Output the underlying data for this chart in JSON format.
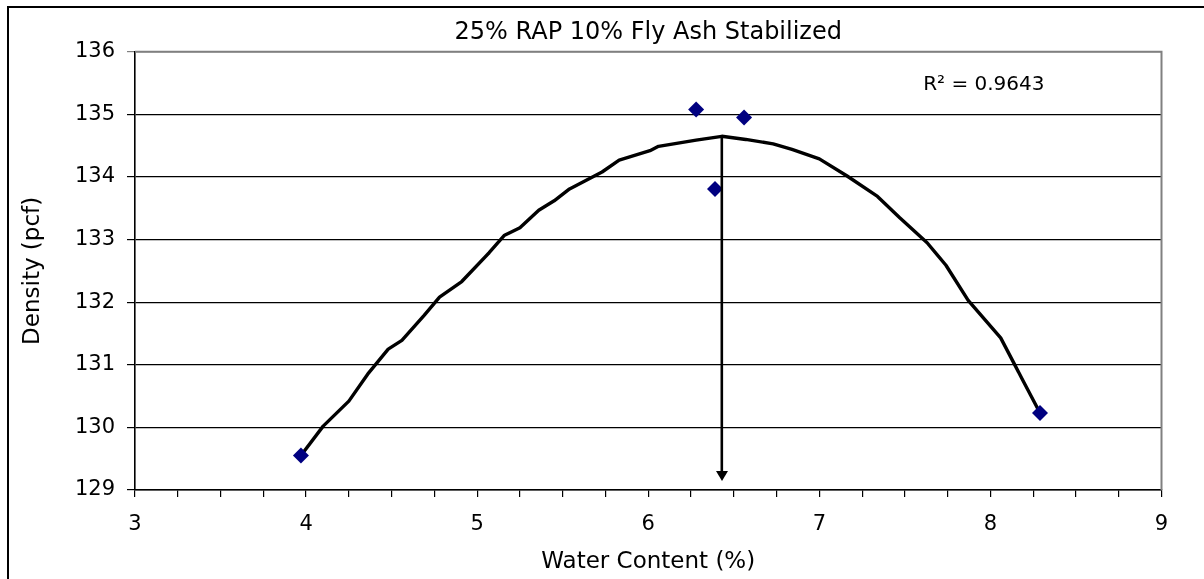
{
  "chart_data": {
    "type": "scatter",
    "title": "25% RAP 10% Fly Ash Stabilized",
    "xlabel": "Water Content (%)",
    "ylabel": "Density (pcf)",
    "annotations": [
      "R² = 0.9643"
    ],
    "xlim": [
      3,
      9
    ],
    "xticks": [
      3,
      {
        "value": 3.25,
        "label": null
      },
      {
        "value": 3.5,
        "label": null
      },
      {
        "value": 3.75,
        "label": null
      },
      4,
      {
        "value": 4.25,
        "label": null
      },
      {
        "value": 4.5,
        "label": null
      },
      {
        "value": 4.75,
        "label": null
      },
      5,
      {
        "value": 5.25,
        "label": null
      },
      {
        "value": 5.5,
        "label": null
      },
      {
        "value": 5.75,
        "label": null
      },
      6,
      {
        "value": 6.25,
        "label": null
      },
      {
        "value": 6.5,
        "label": null
      },
      {
        "value": 6.75,
        "label": null
      },
      7,
      {
        "value": 7.25,
        "label": null
      },
      {
        "value": 7.5,
        "label": null
      },
      {
        "value": 7.75,
        "label": null
      },
      8,
      {
        "value": 8.25,
        "label": null
      },
      {
        "value": 8.5,
        "label": null
      },
      {
        "value": 8.75,
        "label": null
      },
      9
    ],
    "ylim": [
      129,
      136
    ],
    "yticks": [
      129,
      130,
      131,
      132,
      133,
      134,
      135,
      136
    ],
    "grid": "y",
    "marker": "diamond",
    "series": [
      {
        "color": "#000080",
        "x": [
          3.97,
          6.28,
          6.39,
          6.56,
          8.29
        ],
        "values": [
          129.55,
          135.08,
          133.81,
          134.95,
          130.23
        ]
      },
      {
        "type": "line",
        "color": "#000000",
        "marker": "none",
        "x": [
          3.97,
          4.1,
          4.25,
          4.36,
          4.48,
          4.56,
          4.69,
          4.78,
          4.91,
          5.07,
          5.16,
          5.25,
          5.36,
          5.45,
          5.54,
          5.73,
          5.83,
          6.01,
          6.06,
          6.28,
          6.43,
          6.57,
          6.73,
          6.84,
          7.0,
          7.16,
          7.34,
          7.47,
          7.63,
          7.74,
          7.87,
          8.06,
          8.19,
          8.29
        ],
        "values": [
          129.55,
          130.02,
          130.42,
          130.85,
          131.25,
          131.39,
          131.79,
          132.08,
          132.33,
          132.79,
          133.07,
          133.19,
          133.47,
          133.62,
          133.81,
          134.08,
          134.27,
          134.42,
          134.49,
          134.59,
          134.65,
          134.6,
          134.53,
          134.44,
          134.29,
          134.02,
          133.69,
          133.35,
          132.95,
          132.59,
          132.03,
          131.43,
          130.75,
          130.23
        ]
      }
    ],
    "ref_lines": [
      {
        "axis": "x",
        "value": 6.43
      }
    ]
  }
}
